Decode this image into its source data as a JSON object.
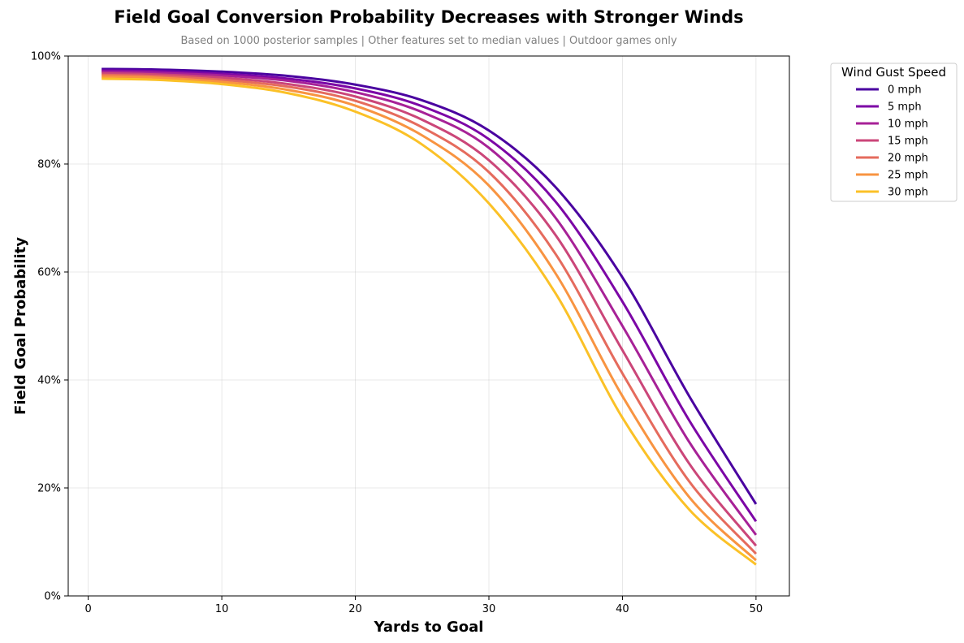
{
  "chart_data": {
    "type": "line",
    "title": "Field Goal Conversion Probability Decreases with Stronger Winds",
    "subtitle": "Based on 1000 posterior samples | Other features set to median values | Outdoor games only",
    "xlabel": "Yards to Goal",
    "ylabel": "Field Goal Probability",
    "xlim": [
      -1.5,
      52.5
    ],
    "ylim": [
      0,
      1
    ],
    "x_ticks": [
      0,
      10,
      20,
      30,
      40,
      50
    ],
    "x_tick_labels": [
      "0",
      "10",
      "20",
      "30",
      "40",
      "50"
    ],
    "y_ticks": [
      0,
      0.2,
      0.4,
      0.6,
      0.8,
      1.0
    ],
    "y_tick_labels": [
      "0%",
      "20%",
      "40%",
      "60%",
      "80%",
      "100%"
    ],
    "grid": true,
    "legend": {
      "title": "Wind Gust Speed",
      "placement": "outside-top-right"
    },
    "x": [
      1,
      5,
      10,
      15,
      20,
      25,
      30,
      35,
      40,
      45,
      50
    ],
    "series": [
      {
        "name": "0 mph",
        "color": "#4a02a0",
        "values": [
          0.976,
          0.975,
          0.971,
          0.963,
          0.947,
          0.918,
          0.862,
          0.757,
          0.59,
          0.37,
          0.17
        ]
      },
      {
        "name": "5 mph",
        "color": "#7c06a6",
        "values": [
          0.973,
          0.972,
          0.967,
          0.958,
          0.94,
          0.907,
          0.846,
          0.73,
          0.545,
          0.325,
          0.138
        ]
      },
      {
        "name": "10 mph",
        "color": "#a72197",
        "values": [
          0.971,
          0.969,
          0.964,
          0.954,
          0.933,
          0.896,
          0.83,
          0.7,
          0.5,
          0.285,
          0.113
        ]
      },
      {
        "name": "15 mph",
        "color": "#cb4679",
        "values": [
          0.968,
          0.966,
          0.96,
          0.948,
          0.925,
          0.882,
          0.807,
          0.668,
          0.455,
          0.245,
          0.093
        ]
      },
      {
        "name": "20 mph",
        "color": "#e56b5d",
        "values": [
          0.965,
          0.963,
          0.956,
          0.943,
          0.917,
          0.868,
          0.785,
          0.633,
          0.412,
          0.212,
          0.078
        ]
      },
      {
        "name": "25 mph",
        "color": "#f89441",
        "values": [
          0.962,
          0.96,
          0.952,
          0.937,
          0.908,
          0.853,
          0.76,
          0.597,
          0.37,
          0.183,
          0.066
        ]
      },
      {
        "name": "30 mph",
        "color": "#fbc127",
        "values": [
          0.958,
          0.956,
          0.948,
          0.931,
          0.897,
          0.836,
          0.727,
          0.56,
          0.33,
          0.16,
          0.058
        ]
      }
    ]
  }
}
